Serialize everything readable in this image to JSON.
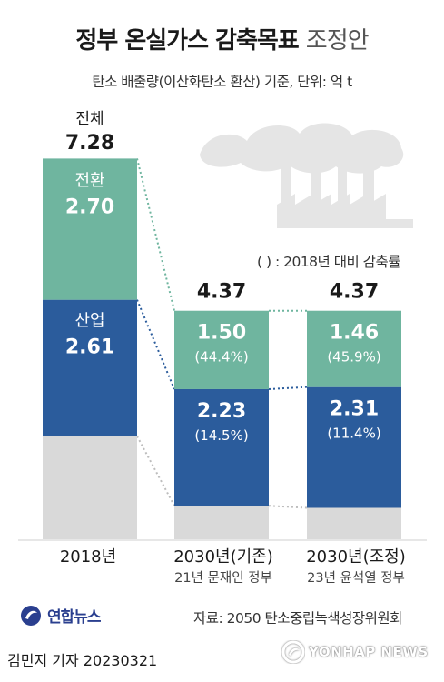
{
  "header": {
    "title_main": "정부 온실가스 감축목표",
    "title_sub": "조정안",
    "subtitle": "탄소 배출량(이산화탄소 환산) 기준, 단위: 억 t"
  },
  "note": "( ) : 2018년 대비 감축률",
  "chart_data": {
    "type": "bar",
    "stacked": true,
    "unit": "억 t",
    "categories": [
      "2018년",
      "2030년(기존)",
      "2030년(조정)"
    ],
    "category_notes": [
      "",
      "21년 문재인 정부",
      "23년 윤석열 정부"
    ],
    "totals": [
      "7.28",
      "4.37",
      "4.37"
    ],
    "total_label": "전체",
    "series": [
      {
        "name": "전환",
        "values": [
          2.7,
          1.5,
          1.46
        ],
        "labels": [
          "2.70",
          "1.50",
          "1.46"
        ],
        "pct": [
          "",
          "(44.4%)",
          "(45.9%)"
        ],
        "color": "#6fb59f"
      },
      {
        "name": "산업",
        "values": [
          2.61,
          2.23,
          2.31
        ],
        "labels": [
          "2.61",
          "2.23",
          "2.31"
        ],
        "pct": [
          "",
          "(14.5%)",
          "(11.4%)"
        ],
        "color": "#2b5c9c"
      },
      {
        "values": [
          1.97,
          0.64,
          0.6
        ],
        "color": "#d9d9d9"
      }
    ]
  },
  "source": "자료: 2050 탄소중립녹색성장위원회",
  "logo": {
    "name": "연합뉴스",
    "icon": "yonhap-logo-icon",
    "color": "#2a3f8f"
  },
  "reporter": "김민지 기자  20230321",
  "watermark": "YONHAP NEWS"
}
